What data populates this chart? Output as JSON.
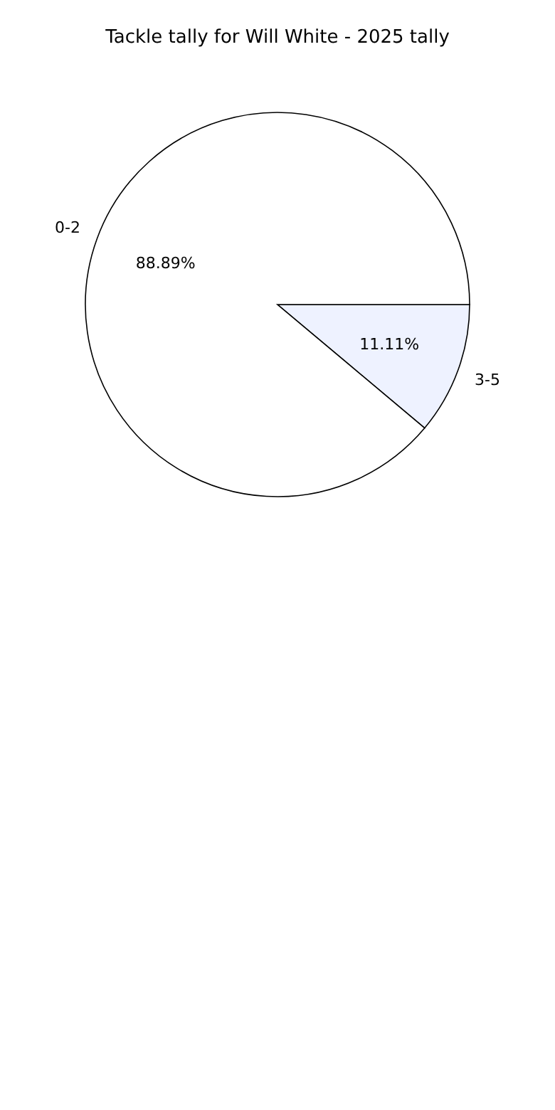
{
  "chart_data": {
    "type": "pie",
    "title": "Tackle tally for Will White - 2025 tally",
    "categories": [
      "0-2",
      "3-5"
    ],
    "values": [
      88.89,
      11.11
    ],
    "colors": [
      "#ffffff",
      "#eef2ff"
    ],
    "value_labels": [
      "88.89%",
      "11.11%"
    ],
    "legend": false
  }
}
